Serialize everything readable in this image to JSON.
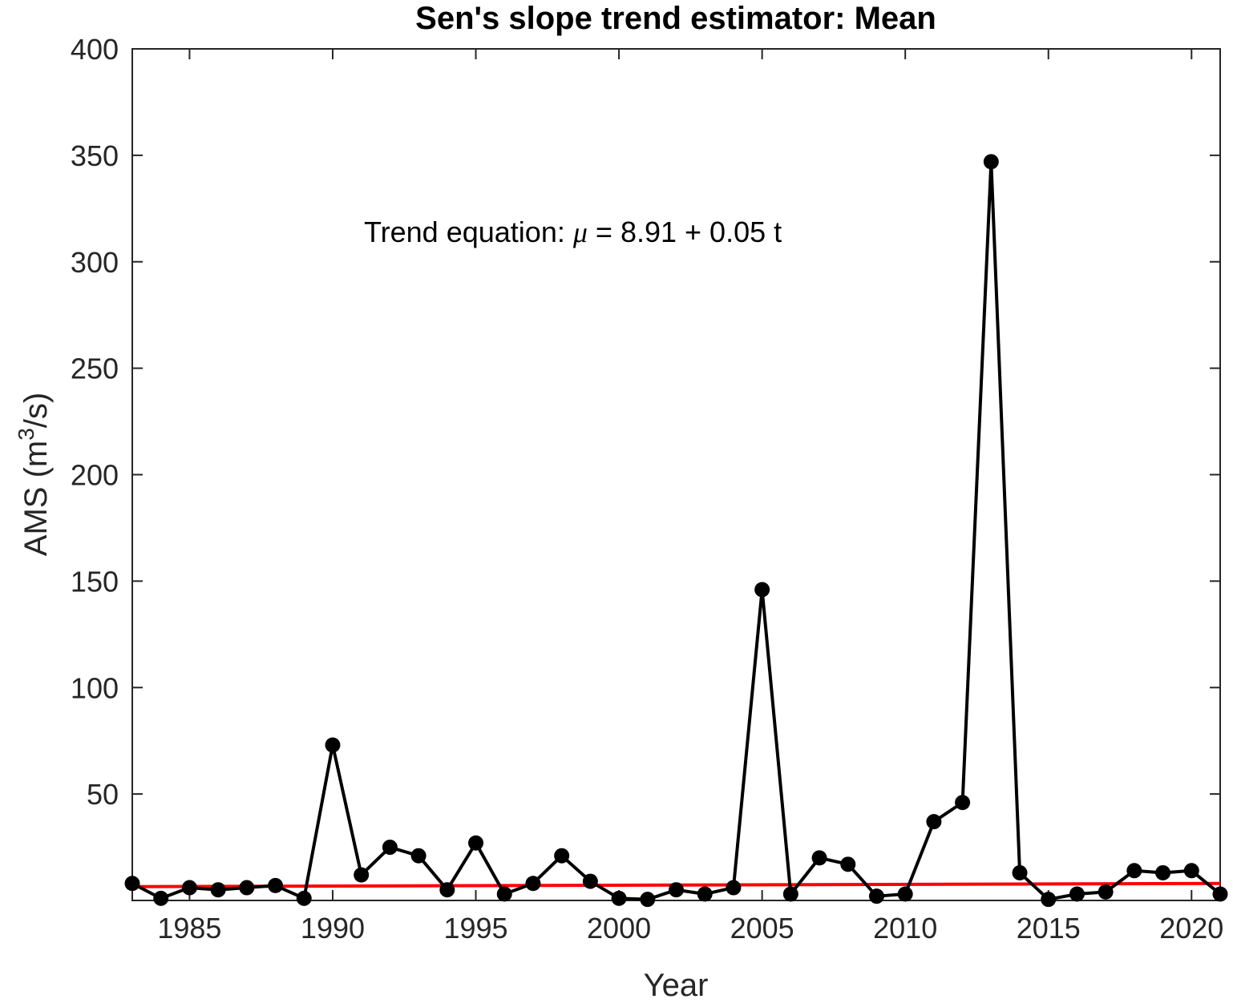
{
  "chart_data": {
    "type": "line",
    "title": "Sen's slope trend estimator: Mean",
    "xlabel": "Year",
    "ylabel": "AMS (m",
    "ylabel_superscript": "3",
    "ylabel_suffix": "/s)",
    "xlim": [
      1983,
      2021
    ],
    "ylim": [
      0,
      400
    ],
    "xticks": [
      1985,
      1990,
      1995,
      2000,
      2005,
      2010,
      2015,
      2020
    ],
    "yticks": [
      50,
      100,
      150,
      200,
      250,
      300,
      350,
      400
    ],
    "grid": false,
    "annotation": {
      "prefix": "Trend equation: ",
      "symbol": "μ",
      "equation": " = 8.91 + 0.05 t"
    },
    "series": [
      {
        "x": [
          1983,
          1984,
          1985,
          1986,
          1987,
          1988,
          1989,
          1990,
          1991,
          1992,
          1993,
          1994,
          1995,
          1996,
          1997,
          1998,
          1999,
          2000,
          2001,
          2002,
          2003,
          2004,
          2005,
          2006,
          2007,
          2008,
          2009,
          2010,
          2011,
          2012,
          2013,
          2014,
          2015,
          2016,
          2017,
          2018,
          2019,
          2020,
          2021
        ],
        "values": [
          8,
          1,
          6,
          5,
          6,
          7,
          1,
          73,
          12,
          25,
          21,
          5,
          27,
          3,
          8,
          21,
          9,
          1,
          0.5,
          5,
          3,
          6,
          146,
          3,
          20,
          17,
          2,
          3,
          37,
          46,
          347,
          13,
          0.5,
          3,
          4,
          14,
          13,
          14,
          3
        ],
        "color": "#000000",
        "marker": "circle"
      },
      {
        "x": [
          1983,
          2021
        ],
        "values": [
          6.5,
          8.0
        ],
        "color": "#ff0000",
        "marker": "none"
      }
    ]
  }
}
